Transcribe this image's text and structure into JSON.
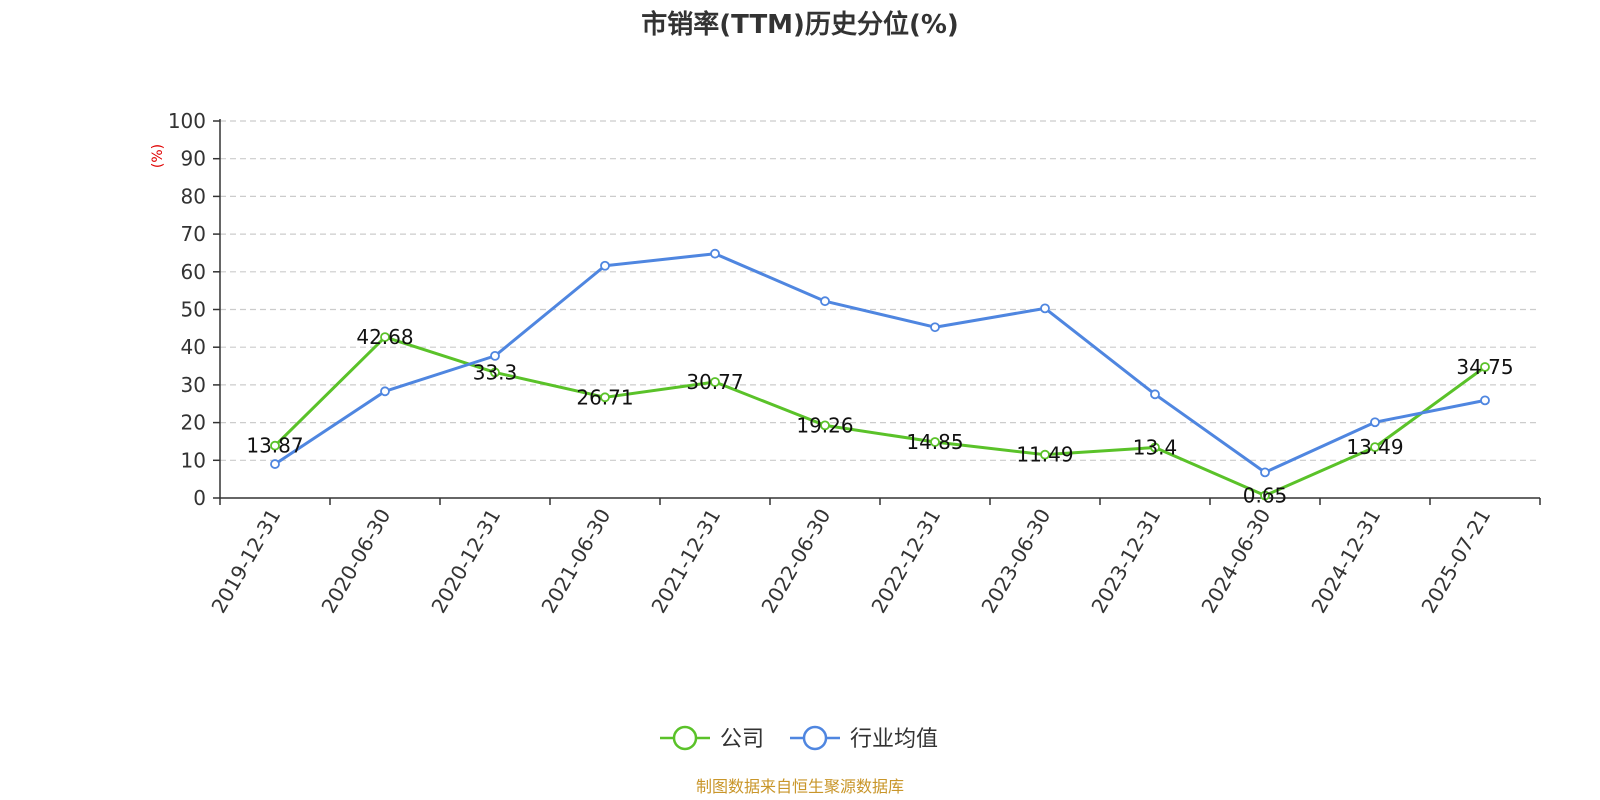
{
  "chart_data": {
    "type": "line",
    "title": "市销率(TTM)历史分位(%)",
    "ylabel": "(%)",
    "ylim": [
      0,
      100
    ],
    "yticks": [
      0,
      10,
      20,
      30,
      40,
      50,
      60,
      70,
      80,
      90,
      100
    ],
    "categories": [
      "2019-12-31",
      "2020-06-30",
      "2020-12-31",
      "2021-06-30",
      "2021-12-31",
      "2022-06-30",
      "2022-12-31",
      "2023-06-30",
      "2023-12-31",
      "2024-06-30",
      "2024-12-31",
      "2025-07-21"
    ],
    "grid": true,
    "legend_position": "bottom",
    "series": [
      {
        "name": "公司",
        "color": "#5ac229",
        "show_labels": true,
        "values": [
          13.87,
          42.68,
          33.3,
          26.71,
          30.77,
          19.26,
          14.85,
          11.49,
          13.4,
          0.65,
          13.49,
          34.75
        ]
      },
      {
        "name": "行业均值",
        "color": "#4f86e0",
        "show_labels": false,
        "values": [
          9,
          28.3,
          37.7,
          61.6,
          64.8,
          52.2,
          45.3,
          50.3,
          27.5,
          6.8,
          20.1,
          25.9
        ]
      }
    ]
  },
  "source": "制图数据来自恒生聚源数据库"
}
